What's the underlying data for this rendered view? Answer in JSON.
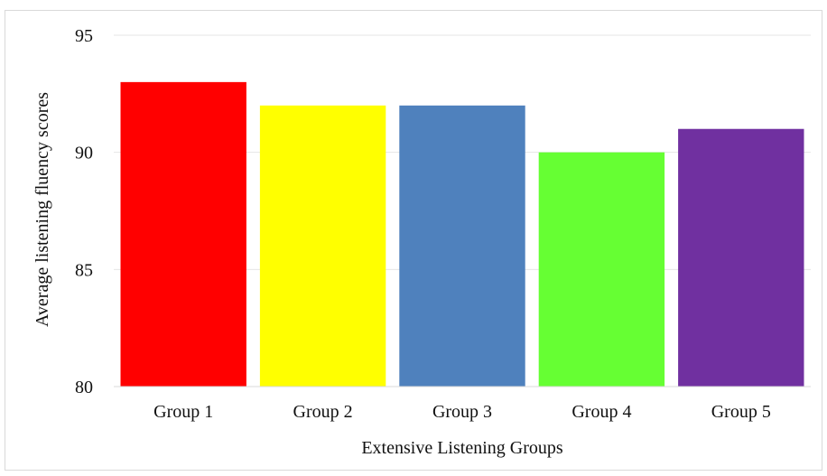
{
  "chart_data": {
    "type": "bar",
    "title": "",
    "xlabel": "Extensive Listening Groups",
    "ylabel": "Average listening fluency scores",
    "categories": [
      "Group 1",
      "Group 2",
      "Group 3",
      "Group 4",
      "Group 5"
    ],
    "values": [
      93,
      92,
      92,
      90,
      91
    ],
    "ylim": [
      80,
      95
    ],
    "yticks": [
      80,
      85,
      90,
      95
    ],
    "grid": true,
    "legend": "none",
    "bar_colors": [
      "#ff0000",
      "#ffff00",
      "#4f81bd",
      "#66ff33",
      "#7030a0"
    ],
    "gridline_color": "#e6e6e6",
    "axis_color": "#d9d9d9"
  }
}
